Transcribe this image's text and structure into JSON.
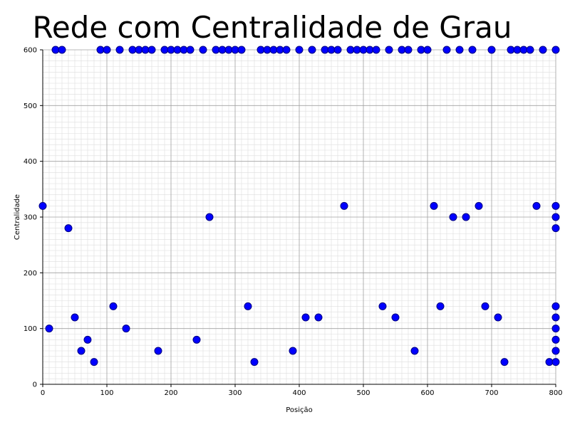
{
  "chart_data": {
    "type": "scatter",
    "title": "Rede com Centralidade de Grau",
    "xlabel": "Posição",
    "ylabel": "Centralidade",
    "xlim": [
      0,
      800
    ],
    "ylim": [
      0,
      600
    ],
    "xticks": [
      "0",
      "100",
      "200",
      "300",
      "400",
      "500",
      "600",
      "700",
      "800"
    ],
    "yticks": [
      "0",
      "100",
      "200",
      "300",
      "400",
      "500",
      "600"
    ],
    "grid": true,
    "marker_color": "#0000ff",
    "marker_edge": "#000080",
    "points": [
      [
        0,
        320
      ],
      [
        10,
        100
      ],
      [
        20,
        600
      ],
      [
        30,
        600
      ],
      [
        40,
        280
      ],
      [
        50,
        120
      ],
      [
        60,
        60
      ],
      [
        70,
        80
      ],
      [
        80,
        40
      ],
      [
        90,
        600
      ],
      [
        100,
        600
      ],
      [
        110,
        140
      ],
      [
        120,
        600
      ],
      [
        130,
        100
      ],
      [
        140,
        600
      ],
      [
        150,
        600
      ],
      [
        160,
        600
      ],
      [
        170,
        600
      ],
      [
        180,
        60
      ],
      [
        190,
        600
      ],
      [
        200,
        600
      ],
      [
        210,
        600
      ],
      [
        220,
        600
      ],
      [
        230,
        600
      ],
      [
        240,
        80
      ],
      [
        250,
        600
      ],
      [
        260,
        300
      ],
      [
        270,
        600
      ],
      [
        280,
        600
      ],
      [
        290,
        600
      ],
      [
        300,
        600
      ],
      [
        310,
        600
      ],
      [
        320,
        140
      ],
      [
        330,
        40
      ],
      [
        340,
        600
      ],
      [
        350,
        600
      ],
      [
        360,
        600
      ],
      [
        370,
        600
      ],
      [
        380,
        600
      ],
      [
        390,
        60
      ],
      [
        400,
        600
      ],
      [
        410,
        120
      ],
      [
        420,
        600
      ],
      [
        430,
        120
      ],
      [
        440,
        600
      ],
      [
        450,
        600
      ],
      [
        460,
        600
      ],
      [
        470,
        320
      ],
      [
        480,
        600
      ],
      [
        490,
        600
      ],
      [
        500,
        600
      ],
      [
        510,
        600
      ],
      [
        520,
        600
      ],
      [
        530,
        140
      ],
      [
        540,
        600
      ],
      [
        550,
        120
      ],
      [
        560,
        600
      ],
      [
        570,
        600
      ],
      [
        580,
        60
      ],
      [
        590,
        600
      ],
      [
        600,
        600
      ],
      [
        610,
        320
      ],
      [
        620,
        140
      ],
      [
        630,
        600
      ],
      [
        640,
        300
      ],
      [
        650,
        600
      ],
      [
        660,
        300
      ],
      [
        670,
        600
      ],
      [
        680,
        320
      ],
      [
        690,
        140
      ],
      [
        700,
        600
      ],
      [
        710,
        120
      ],
      [
        720,
        40
      ],
      [
        730,
        600
      ],
      [
        740,
        600
      ],
      [
        750,
        600
      ],
      [
        760,
        600
      ],
      [
        770,
        320
      ],
      [
        780,
        600
      ],
      [
        790,
        40
      ],
      [
        800,
        600
      ],
      [
        800,
        320
      ],
      [
        800,
        300
      ],
      [
        800,
        280
      ],
      [
        800,
        140
      ],
      [
        800,
        120
      ],
      [
        800,
        100
      ],
      [
        800,
        80
      ],
      [
        800,
        60
      ],
      [
        800,
        40
      ]
    ]
  }
}
